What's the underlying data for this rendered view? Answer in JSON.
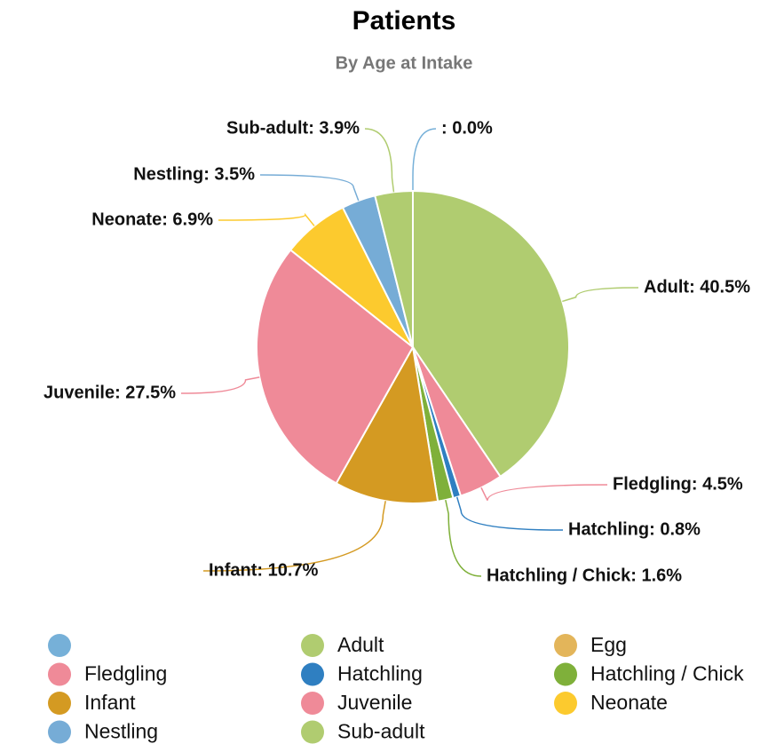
{
  "chart_data": {
    "type": "pie",
    "title": "Patients",
    "subtitle": "By Age at Intake",
    "categories": [
      "",
      "Adult",
      "Egg",
      "Fledgling",
      "Hatchling",
      "Hatchling / Chick",
      "Infant",
      "Juvenile",
      "Neonate",
      "Nestling",
      "Sub-adult"
    ],
    "values": [
      0.0,
      40.5,
      null,
      4.5,
      0.8,
      1.6,
      10.7,
      27.5,
      6.9,
      3.5,
      3.9
    ],
    "value_labels": [
      ": 0.0%",
      "Adult: 40.5%",
      null,
      "Fledgling: 4.5%",
      "Hatchling: 0.8%",
      "Hatchling / Chick: 1.6%",
      "Infant: 10.7%",
      "Juvenile: 27.5%",
      "Neonate: 6.9%",
      "Nestling: 3.5%",
      "Sub-adult: 3.9%"
    ],
    "colors": [
      "#76b0d8",
      "#b0cc70",
      "#e3b55a",
      "#ef8a98",
      "#2f7fc1",
      "#7fb03a",
      "#d49a22",
      "#ef8a98",
      "#fcca2e",
      "#76acd6",
      "#b0cc70"
    ]
  }
}
